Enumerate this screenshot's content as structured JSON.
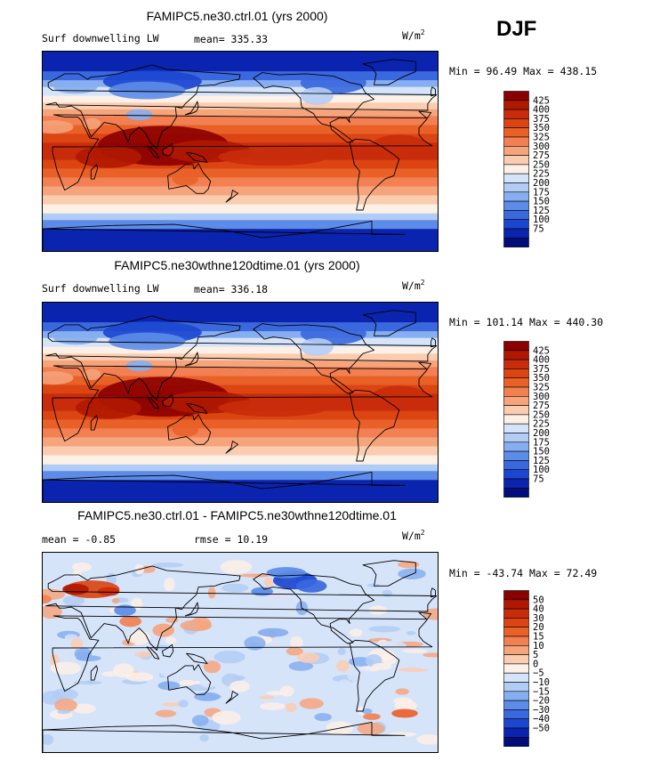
{
  "season": "DJF",
  "panels": [
    {
      "title": "FAMIPC5.ne30.ctrl.01 (yrs 2000)",
      "variable": "Surf downwelling LW",
      "mean_text": "mean=  335.33",
      "units": "W/m",
      "units_sup": "2",
      "minmax": "Min =   96.49 Max = 438.15",
      "colorbar_labels": [
        "425",
        "400",
        "375",
        "350",
        "325",
        "300",
        "275",
        "250",
        "225",
        "200",
        "175",
        "150",
        "125",
        "100",
        "75"
      ],
      "colors": [
        "#8b0000",
        "#b01800",
        "#c92c0a",
        "#dc4412",
        "#ea6128",
        "#f28052",
        "#f6a47c",
        "#fbcdb0",
        "#fdf0e6",
        "#d6e4fa",
        "#b2cdf5",
        "#86aef0",
        "#5c8ce8",
        "#3a68de",
        "#1c46d0",
        "#0a24b0",
        "#000d7a"
      ]
    },
    {
      "title": "FAMIPC5.ne30wthne120dtime.01 (yrs 2000)",
      "variable": "Surf downwelling LW",
      "mean_text": "mean=  336.18",
      "units": "W/m",
      "units_sup": "2",
      "minmax": "Min =  101.14 Max = 440.30",
      "colorbar_labels": [
        "425",
        "400",
        "375",
        "350",
        "325",
        "300",
        "275",
        "250",
        "225",
        "200",
        "175",
        "150",
        "125",
        "100",
        "75"
      ],
      "colors": [
        "#8b0000",
        "#b01800",
        "#c92c0a",
        "#dc4412",
        "#ea6128",
        "#f28052",
        "#f6a47c",
        "#fbcdb0",
        "#fdf0e6",
        "#d6e4fa",
        "#b2cdf5",
        "#86aef0",
        "#5c8ce8",
        "#3a68de",
        "#1c46d0",
        "#0a24b0",
        "#000d7a"
      ]
    },
    {
      "title": "FAMIPC5.ne30.ctrl.01 - FAMIPC5.ne30wthne120dtime.01",
      "mean_text": "mean =   -0.85",
      "rmse_text": "rmse =   10.19",
      "units": "W/m",
      "units_sup": "2",
      "minmax": "Min =  -43.74 Max =  72.49",
      "colorbar_labels": [
        "50",
        "40",
        "30",
        "20",
        "15",
        "10",
        "5",
        "0",
        "−5",
        "−10",
        "−15",
        "−20",
        "−30",
        "−40",
        "−50"
      ],
      "colors": [
        "#8b0000",
        "#b01800",
        "#c92c0a",
        "#dc4412",
        "#ea6128",
        "#f28052",
        "#f6a47c",
        "#fbcdb0",
        "#fdf0e6",
        "#d6e4fa",
        "#b2cdf5",
        "#86aef0",
        "#5c8ce8",
        "#3a68de",
        "#1c46d0",
        "#0a24b0",
        "#000d7a"
      ]
    }
  ]
}
